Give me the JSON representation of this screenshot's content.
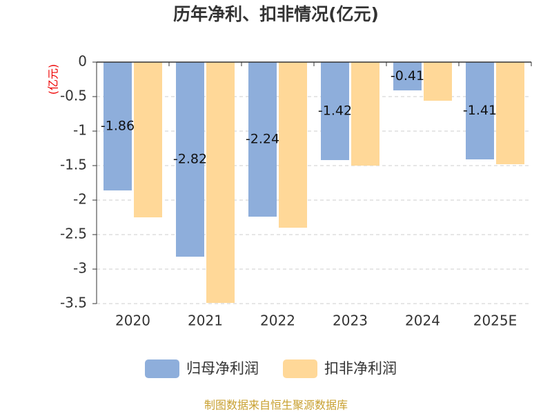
{
  "chart_data": {
    "type": "bar",
    "title": "历年净利、扣非情况(亿元)",
    "y_label": "(亿元)",
    "categories": [
      "2020",
      "2021",
      "2022",
      "2023",
      "2024",
      "2025E"
    ],
    "series": [
      {
        "name": "归母净利润",
        "color": "#8eaedb",
        "values": [
          -1.86,
          -2.82,
          -2.24,
          -1.42,
          -0.41,
          -1.41
        ]
      },
      {
        "name": "扣非净利润",
        "color": "#ffd898",
        "values": [
          -2.25,
          -3.49,
          -2.4,
          -1.5,
          -0.56,
          -1.48
        ]
      }
    ],
    "ylim": [
      -3.5,
      0
    ],
    "yticks": [
      0,
      -0.5,
      -1,
      -1.5,
      -2,
      -2.5,
      -3,
      -3.5
    ],
    "grid": true,
    "source": "制图数据来自恒生聚源数据库"
  }
}
